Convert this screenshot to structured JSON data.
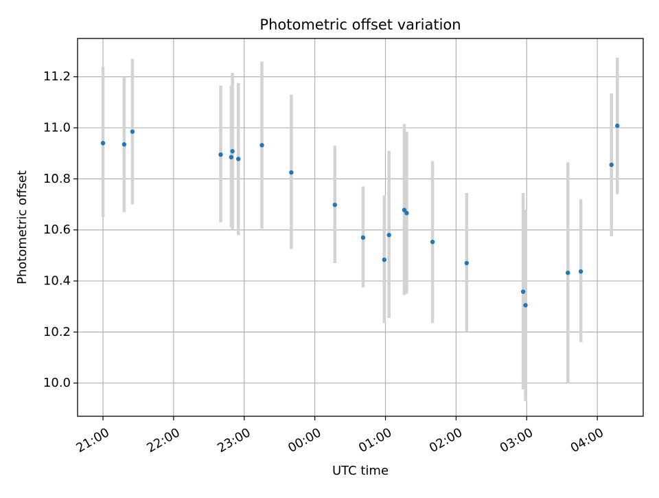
{
  "chart_data": {
    "type": "scatter",
    "title": "Photometric offset variation",
    "xlabel": "UTC time",
    "ylabel": "Photometric offset",
    "x_unit": "hours from 21:00 UTC on the displayed night",
    "xlim": [
      -0.36,
      7.65
    ],
    "ylim": [
      9.87,
      11.35
    ],
    "x_ticks": [
      {
        "value": 0,
        "label": "21:00"
      },
      {
        "value": 1,
        "label": "22:00"
      },
      {
        "value": 2,
        "label": "23:00"
      },
      {
        "value": 3,
        "label": "00:00"
      },
      {
        "value": 4,
        "label": "01:00"
      },
      {
        "value": 5,
        "label": "02:00"
      },
      {
        "value": 6,
        "label": "03:00"
      },
      {
        "value": 7,
        "label": "04:00"
      }
    ],
    "y_ticks": [
      {
        "value": 10.0,
        "label": "10.0"
      },
      {
        "value": 10.2,
        "label": "10.2"
      },
      {
        "value": 10.4,
        "label": "10.4"
      },
      {
        "value": 10.6,
        "label": "10.6"
      },
      {
        "value": 10.8,
        "label": "10.8"
      },
      {
        "value": 11.0,
        "label": "11.0"
      },
      {
        "value": 11.2,
        "label": "11.2"
      }
    ],
    "grid": true,
    "x_ticklabel_rotation": 30,
    "colors": {
      "point": "#1f77b4",
      "errorbar": "#d3d3d3",
      "grid": "#b0b0b0"
    },
    "points": [
      {
        "time": "21:00",
        "y": 10.94,
        "low": 10.65,
        "high": 11.24
      },
      {
        "time": "21:18",
        "y": 10.935,
        "low": 10.67,
        "high": 11.2
      },
      {
        "time": "21:25",
        "y": 10.985,
        "low": 10.7,
        "high": 11.27
      },
      {
        "time": "22:40",
        "y": 10.895,
        "low": 10.63,
        "high": 11.165
      },
      {
        "time": "22:49",
        "y": 10.885,
        "low": 10.61,
        "high": 11.165
      },
      {
        "time": "22:50",
        "y": 10.908,
        "low": 10.6,
        "high": 11.215
      },
      {
        "time": "22:55",
        "y": 10.878,
        "low": 10.58,
        "high": 11.175
      },
      {
        "time": "23:15",
        "y": 10.932,
        "low": 10.605,
        "high": 11.26
      },
      {
        "time": "23:40",
        "y": 10.825,
        "low": 10.525,
        "high": 11.13
      },
      {
        "time": "00:17",
        "y": 10.698,
        "low": 10.47,
        "high": 10.93
      },
      {
        "time": "00:41",
        "y": 10.57,
        "low": 10.375,
        "high": 10.77
      },
      {
        "time": "00:59",
        "y": 10.483,
        "low": 10.235,
        "high": 10.735
      },
      {
        "time": "01:03",
        "y": 10.58,
        "low": 10.255,
        "high": 10.91
      },
      {
        "time": "01:16",
        "y": 10.678,
        "low": 10.345,
        "high": 11.015
      },
      {
        "time": "01:18",
        "y": 10.666,
        "low": 10.35,
        "high": 10.985
      },
      {
        "time": "01:40",
        "y": 10.553,
        "low": 10.235,
        "high": 10.87
      },
      {
        "time": "02:09",
        "y": 10.47,
        "low": 10.2,
        "high": 10.745
      },
      {
        "time": "02:57",
        "y": 10.358,
        "low": 9.975,
        "high": 10.745
      },
      {
        "time": "02:59",
        "y": 10.305,
        "low": 9.93,
        "high": 10.68
      },
      {
        "time": "03:35",
        "y": 10.432,
        "low": 10.0,
        "high": 10.865
      },
      {
        "time": "03:46",
        "y": 10.437,
        "low": 10.16,
        "high": 10.72
      },
      {
        "time": "04:12",
        "y": 10.855,
        "low": 10.575,
        "high": 11.135
      },
      {
        "time": "04:17",
        "y": 11.008,
        "low": 10.74,
        "high": 11.275
      }
    ]
  }
}
